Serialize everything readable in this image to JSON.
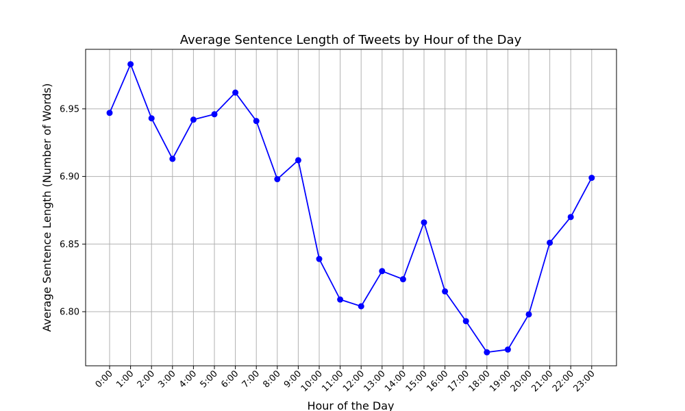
{
  "chart_data": {
    "type": "line",
    "title": "Average Sentence Length of Tweets by Hour of the Day",
    "xlabel": "Hour of the Day",
    "ylabel": "Average Sentence Length (Number of Words)",
    "categories": [
      "0:00",
      "1:00",
      "2:00",
      "3:00",
      "4:00",
      "5:00",
      "6:00",
      "7:00",
      "8:00",
      "9:00",
      "10:00",
      "11:00",
      "12:00",
      "13:00",
      "14:00",
      "15:00",
      "16:00",
      "17:00",
      "18:00",
      "19:00",
      "20:00",
      "21:00",
      "22:00",
      "23:00"
    ],
    "series": [
      {
        "color": "#0000ff",
        "marker": "circle",
        "values": [
          6.947,
          6.983,
          6.943,
          6.913,
          6.942,
          6.946,
          6.962,
          6.941,
          6.898,
          6.912,
          6.839,
          6.809,
          6.804,
          6.83,
          6.824,
          6.866,
          6.815,
          6.793,
          6.77,
          6.772,
          6.798,
          6.851,
          6.87,
          6.899
        ]
      }
    ],
    "ylim": [
      6.76,
      6.994
    ],
    "yticks": [
      6.8,
      6.85,
      6.9,
      6.95
    ],
    "ytick_labels": [
      "6.80",
      "6.85",
      "6.90",
      "6.95"
    ],
    "grid": true,
    "x_tick_rotation_deg": 45
  }
}
